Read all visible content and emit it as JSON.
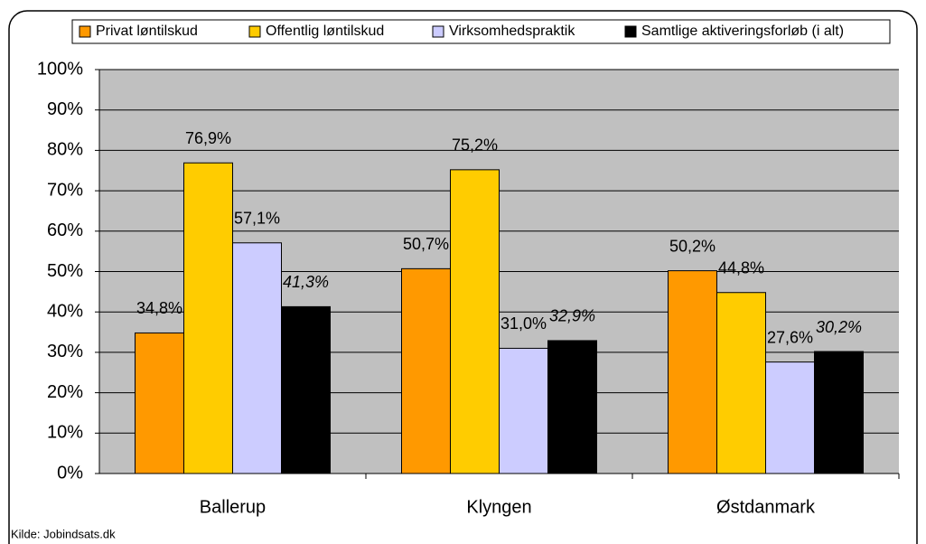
{
  "chart_data": {
    "type": "bar",
    "categories": [
      "Ballerup",
      "Klyngen",
      "Østdanmark"
    ],
    "series": [
      {
        "name": "Privat løntilskud",
        "color": "#FF9900",
        "values": [
          34.8,
          50.7,
          50.2
        ],
        "value_labels": [
          "34,8%",
          "50,7%",
          "50,2%"
        ]
      },
      {
        "name": "Offentlig løntilskud",
        "color": "#FFCC00",
        "values": [
          76.9,
          75.2,
          44.8
        ],
        "value_labels": [
          "76,9%",
          "75,2%",
          "44,8%"
        ]
      },
      {
        "name": "Virksomhedspraktik",
        "color": "#CCCCFF",
        "values": [
          57.1,
          31.0,
          27.6
        ],
        "value_labels": [
          "57,1%",
          "31,0%",
          "27,6%"
        ]
      },
      {
        "name": "Samtlige aktiveringsforløb (i alt)",
        "color": "#000000",
        "values": [
          41.3,
          32.9,
          30.2
        ],
        "value_labels": [
          "41,3%",
          "32,9%",
          "30,2%"
        ],
        "italic": true
      }
    ],
    "ylim": [
      0,
      100
    ],
    "yticks": [
      {
        "value": 0,
        "label": "0%"
      },
      {
        "value": 10,
        "label": "10%"
      },
      {
        "value": 20,
        "label": "20%"
      },
      {
        "value": 30,
        "label": "30%"
      },
      {
        "value": 40,
        "label": "40%"
      },
      {
        "value": 50,
        "label": "50%"
      },
      {
        "value": 60,
        "label": "60%"
      },
      {
        "value": 70,
        "label": "70%"
      },
      {
        "value": 80,
        "label": "80%"
      },
      {
        "value": 90,
        "label": "90%"
      },
      {
        "value": 100,
        "label": "100%"
      }
    ],
    "grid": true,
    "legend": "top",
    "source": "Kilde: Jobindsats.dk"
  }
}
